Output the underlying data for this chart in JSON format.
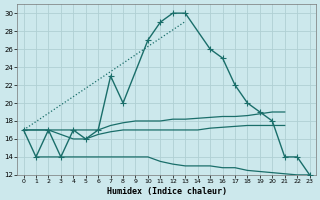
{
  "xlabel": "Humidex (Indice chaleur)",
  "background_color": "#cce8ec",
  "grid_color": "#b0d0d4",
  "line_color": "#1a6e6a",
  "xlim": [
    -0.5,
    23.5
  ],
  "ylim": [
    12,
    31
  ],
  "yticks": [
    12,
    14,
    16,
    18,
    20,
    22,
    24,
    26,
    28,
    30
  ],
  "xticks": [
    0,
    1,
    2,
    3,
    4,
    5,
    6,
    7,
    8,
    9,
    10,
    11,
    12,
    13,
    14,
    15,
    16,
    17,
    18,
    19,
    20,
    21,
    22,
    23
  ],
  "main_line": {
    "x": [
      0,
      1,
      2,
      3,
      4,
      5,
      6,
      7,
      8,
      10,
      11,
      12,
      13,
      15,
      16,
      17,
      18,
      19,
      20,
      21,
      22,
      23
    ],
    "y": [
      17,
      14,
      17,
      14,
      17,
      16,
      17,
      23,
      20,
      27,
      29,
      30,
      30,
      26,
      25,
      22,
      20,
      19,
      18,
      14,
      14,
      12
    ]
  },
  "dotted_line": {
    "x": [
      0,
      1,
      2,
      3,
      4,
      5,
      6,
      7,
      8,
      9,
      10,
      11,
      12,
      13
    ],
    "y": [
      17,
      17.93,
      18.86,
      19.79,
      20.71,
      21.64,
      22.57,
      23.5,
      24.43,
      25.36,
      26.29,
      27.21,
      28.14,
      29.07
    ]
  },
  "upper_band": {
    "x": [
      0,
      2,
      4,
      5,
      6,
      7,
      8,
      9,
      10,
      11,
      12,
      13,
      14,
      15,
      16,
      17,
      18,
      19,
      20,
      21
    ],
    "y": [
      17,
      17,
      17,
      17,
      17,
      17.5,
      17.8,
      18,
      18,
      18,
      18.2,
      18.2,
      18.3,
      18.4,
      18.5,
      18.5,
      18.6,
      18.8,
      19,
      19
    ]
  },
  "mid_band": {
    "x": [
      0,
      2,
      4,
      5,
      6,
      7,
      8,
      9,
      10,
      11,
      12,
      13,
      14,
      15,
      16,
      17,
      18,
      19,
      20,
      21
    ],
    "y": [
      17,
      17,
      16,
      16,
      16.5,
      16.8,
      17,
      17,
      17,
      17,
      17,
      17,
      17,
      17.2,
      17.3,
      17.4,
      17.5,
      17.5,
      17.5,
      17.5
    ]
  },
  "lower_band": {
    "x": [
      1,
      3,
      4,
      10,
      11,
      12,
      13,
      14,
      15,
      16,
      17,
      18,
      22,
      23
    ],
    "y": [
      14,
      14,
      14,
      14,
      13.5,
      13.2,
      13,
      13,
      13,
      12.8,
      12.8,
      12.5,
      12,
      12
    ]
  }
}
